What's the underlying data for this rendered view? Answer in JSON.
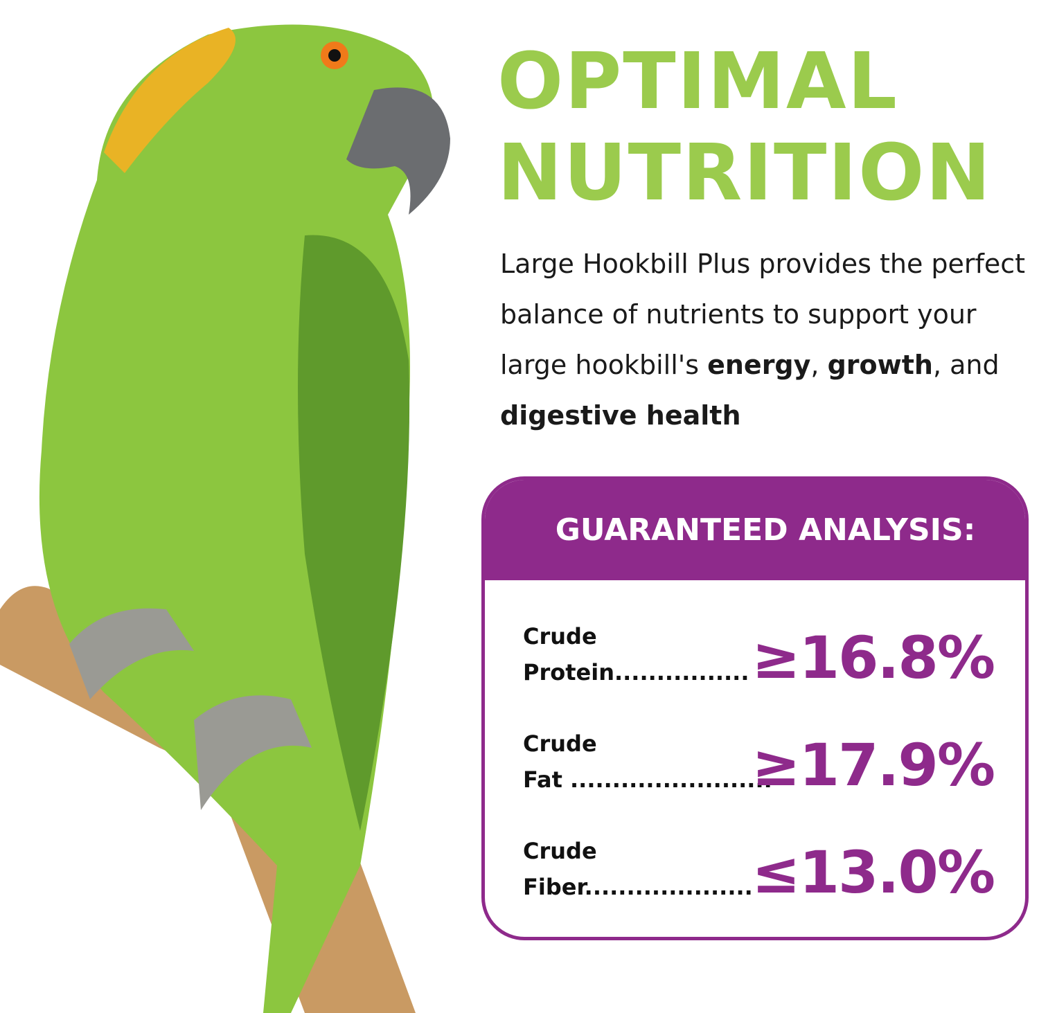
{
  "headline": {
    "line1": "OPTIMAL",
    "line2": "NUTRITION"
  },
  "description": {
    "text1": "Large Hookbill Plus provides the perfect balance of nutrients to support your large hookbill's ",
    "bold1": "energy",
    "text2": ", ",
    "bold2": "growth",
    "text3": ", and ",
    "bold3": "digestive health"
  },
  "analysis": {
    "title": "GUARANTEED ANALYSIS:",
    "rows": [
      {
        "line1": "Crude",
        "line2": "Protein................",
        "value": "≥16.8%"
      },
      {
        "line1": "Crude",
        "line2": "Fat ........................",
        "value": "≥17.9%"
      },
      {
        "line1": "Crude",
        "line2": "Fiber....................",
        "value": "≤13.0%"
      }
    ]
  },
  "colors": {
    "green": "#9bcb4d",
    "purple": "#8e2a8b"
  },
  "image": {
    "subject": "parrot-on-perch"
  }
}
